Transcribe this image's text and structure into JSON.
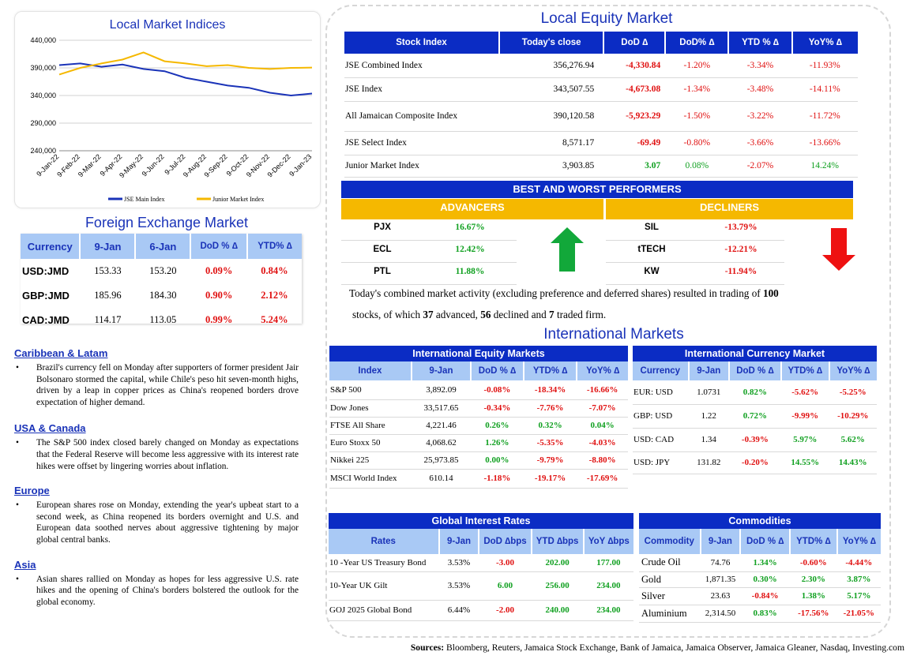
{
  "chart_data": {
    "type": "line",
    "title": "Local Market Indices",
    "x": [
      "9-Jan-22",
      "9-Feb-22",
      "9-Mar-22",
      "9-Apr-22",
      "9-May-22",
      "9-Jun-22",
      "9-Jul-22",
      "9-Aug-22",
      "9-Sep-22",
      "9-Oct-22",
      "9-Nov-22",
      "9-Dec-22",
      "9-Jan-23"
    ],
    "ytick_labels": [
      "440,000",
      "390,000",
      "340,000",
      "290,000",
      "240,000"
    ],
    "ylim": [
      240000,
      440000
    ],
    "series": [
      {
        "name": "JSE Main Index",
        "color": "#1a33b8",
        "values": [
          395000,
          398000,
          392000,
          396000,
          388000,
          384000,
          372000,
          365000,
          358000,
          354000,
          345000,
          340000,
          343500
        ]
      },
      {
        "name": "Junior Market Index",
        "color": "#f5b800",
        "values": [
          378000,
          390000,
          398000,
          405000,
          418000,
          402000,
          398000,
          393000,
          395000,
          390000,
          388000,
          390000,
          390500
        ]
      }
    ],
    "legend_position": "bottom"
  },
  "fx": {
    "title": "Foreign Exchange Market",
    "headers": [
      "Currency",
      "9-Jan",
      "6-Jan",
      "DoD % ∆",
      "YTD% ∆"
    ],
    "rows": [
      {
        "c": "USD:JMD",
        "a": "153.33",
        "b": "153.20",
        "d": "0.09%",
        "y": "0.84%"
      },
      {
        "c": "GBP:JMD",
        "a": "185.96",
        "b": "184.30",
        "d": "0.90%",
        "y": "2.12%"
      },
      {
        "c": "CAD:JMD",
        "a": "114.17",
        "b": "113.05",
        "d": "0.99%",
        "y": "5.24%"
      }
    ]
  },
  "news": [
    {
      "title": "Caribbean & Latam",
      "text": "Brazil's currency fell on Monday after supporters of former president Jair Bolsonaro stormed the capital, while Chile's peso hit seven-month highs, driven by a leap in copper prices as China's reopened borders drove expectation of higher demand."
    },
    {
      "title": "USA & Canada",
      "text": "The S&P 500 index closed barely changed on Monday as expectations that the Federal Reserve will become less aggressive with its interest rate hikes were offset by lingering worries about inflation."
    },
    {
      "title": "Europe",
      "text": "European shares rose on Monday, extending the year's upbeat start to a second week, as China reopened its borders overnight and U.S. and European data soothed nerves about aggressive tightening by major global central banks."
    },
    {
      "title": "Asia",
      "text": "Asian shares rallied on Monday as hopes for less aggressive U.S. rate hikes and the opening of China's borders bolstered the outlook for the global economy."
    }
  ],
  "equity": {
    "title": "Local Equity Market",
    "headers": [
      "Stock Index",
      "Today's close",
      "DoD  ∆",
      "DoD% ∆",
      "YTD % ∆",
      "YoY% ∆"
    ],
    "rows": [
      {
        "n": "JSE Combined Index",
        "c": "356,276.94",
        "d": "-4,330.84",
        "dp": "-1.20%",
        "y": "-3.34%",
        "yy": "-11.93%",
        "dc": "red",
        "yc": "red"
      },
      {
        "n": "JSE Index",
        "c": "343,507.55",
        "d": "-4,673.08",
        "dp": "-1.34%",
        "y": "-3.48%",
        "yy": "-14.11%",
        "dc": "red",
        "yc": "red"
      },
      {
        "n": "All Jamaican Composite Index",
        "c": "390,120.58",
        "d": "-5,923.29",
        "dp": "-1.50%",
        "y": "-3.22%",
        "yy": "-11.72%",
        "dc": "red",
        "yc": "red"
      },
      {
        "n": "JSE Select Index",
        "c": "8,571.17",
        "d": "-69.49",
        "dp": "-0.80%",
        "y": "-3.66%",
        "yy": "-13.66%",
        "dc": "red",
        "yc": "red"
      },
      {
        "n": "Junior Market Index",
        "c": "3,903.85",
        "d": "3.07",
        "dp": "0.08%",
        "y": "-2.07%",
        "yy": "14.24%",
        "dc": "green",
        "yc": "green"
      }
    ]
  },
  "performers": {
    "title": "BEST AND WORST PERFORMERS",
    "adv_label": "ADVANCERS",
    "dec_label": "DECLINERS",
    "advancers": [
      {
        "s": "PJX",
        "v": "16.67%"
      },
      {
        "s": "ECL",
        "v": "12.42%"
      },
      {
        "s": "PTL",
        "v": "11.88%"
      }
    ],
    "decliners": [
      {
        "s": "SIL",
        "v": "-13.79%"
      },
      {
        "s": "tTECH",
        "v": "-12.21%"
      },
      {
        "s": "KW",
        "v": "-11.94%"
      }
    ]
  },
  "summary": {
    "p1": "Today's combined market activity (excluding preference and deferred shares) resulted in trading of ",
    "n_total": "100",
    "p2": "stocks, of which ",
    "n_adv": "37",
    "p3": " advanced, ",
    "n_dec": "56",
    "p4": " declined and ",
    "n_firm": "7",
    "p5": " traded firm."
  },
  "intl": {
    "title": "International Markets",
    "equity": {
      "title": "International Equity Markets",
      "headers": [
        "Index",
        "9-Jan",
        "DoD % ∆",
        "YTD% ∆",
        "YoY% ∆"
      ],
      "rows": [
        {
          "n": "S&P 500",
          "v": "3,892.09",
          "d": "-0.08%",
          "y": "-18.34%",
          "yy": "-16.66%",
          "dc": "red",
          "yc": "red",
          "yyc": "red"
        },
        {
          "n": "Dow Jones",
          "v": "33,517.65",
          "d": "-0.34%",
          "y": "-7.76%",
          "yy": "-7.07%",
          "dc": "red",
          "yc": "red",
          "yyc": "red"
        },
        {
          "n": "FTSE All Share",
          "v": "4,221.46",
          "d": "0.26%",
          "y": "0.32%",
          "yy": "0.04%",
          "dc": "green",
          "yc": "green",
          "yyc": "green"
        },
        {
          "n": "Euro Stoxx 50",
          "v": "4,068.62",
          "d": "1.26%",
          "y": "-5.35%",
          "yy": "-4.03%",
          "dc": "green",
          "yc": "red",
          "yyc": "red"
        },
        {
          "n": "Nikkei 225",
          "v": "25,973.85",
          "d": "0.00%",
          "y": "-9.79%",
          "yy": "-8.80%",
          "dc": "green",
          "yc": "red",
          "yyc": "red"
        },
        {
          "n": "MSCI World Index",
          "v": "610.14",
          "d": "-1.18%",
          "y": "-19.17%",
          "yy": "-17.69%",
          "dc": "red",
          "yc": "red",
          "yyc": "red"
        }
      ]
    },
    "currency": {
      "title": "International Currency Market",
      "headers": [
        "Currency",
        "9-Jan",
        "DoD % ∆",
        "YTD% ∆",
        "YoY% ∆"
      ],
      "rows": [
        {
          "n": "EUR: USD",
          "v": "1.0731",
          "d": "0.82%",
          "y": "-5.62%",
          "yy": "-5.25%",
          "dc": "green",
          "yc": "red",
          "yyc": "red"
        },
        {
          "n": "GBP: USD",
          "v": "1.22",
          "d": "0.72%",
          "y": "-9.99%",
          "yy": "-10.29%",
          "dc": "green",
          "yc": "red",
          "yyc": "red"
        },
        {
          "n": "USD: CAD",
          "v": "1.34",
          "d": "-0.39%",
          "y": "5.97%",
          "yy": "5.62%",
          "dc": "red",
          "yc": "green",
          "yyc": "green"
        },
        {
          "n": "USD: JPY",
          "v": "131.82",
          "d": "-0.20%",
          "y": "14.55%",
          "yy": "14.43%",
          "dc": "red",
          "yc": "green",
          "yyc": "green"
        }
      ]
    },
    "rates": {
      "title": "Global Interest Rates",
      "headers": [
        "Rates",
        "9-Jan",
        "DoD ∆bps",
        "YTD ∆bps",
        "YoY ∆bps"
      ],
      "rows": [
        {
          "n": "10 -Year US Treasury Bond",
          "v": "3.53%",
          "d": "-3.00",
          "y": "202.00",
          "yy": "177.00",
          "dc": "red"
        },
        {
          "n": "10-Year UK Gilt",
          "v": "3.53%",
          "d": "6.00",
          "y": "256.00",
          "yy": "234.00",
          "dc": "green"
        },
        {
          "n": "GOJ 2025 Global Bond",
          "v": "6.44%",
          "d": "-2.00",
          "y": "240.00",
          "yy": "234.00",
          "dc": "red"
        }
      ]
    },
    "commodities": {
      "title": "Commodities",
      "headers": [
        "Commodity",
        "9-Jan",
        "DoD % ∆",
        "YTD% ∆",
        "YoY% ∆"
      ],
      "rows": [
        {
          "n": "Crude Oil",
          "v": "74.76",
          "d": "1.34%",
          "y": "-0.60%",
          "yy": "-4.44%",
          "dc": "green",
          "yc": "red",
          "yyc": "red"
        },
        {
          "n": "Gold",
          "v": "1,871.35",
          "d": "0.30%",
          "y": "2.30%",
          "yy": "3.87%",
          "dc": "green",
          "yc": "green",
          "yyc": "green"
        },
        {
          "n": "Silver",
          "v": "23.63",
          "d": "-0.84%",
          "y": "1.38%",
          "yy": "5.17%",
          "dc": "red",
          "yc": "green",
          "yyc": "green"
        },
        {
          "n": "Aluminium",
          "v": "2,314.50",
          "d": "0.83%",
          "y": "-17.56%",
          "yy": "-21.05%",
          "dc": "green",
          "yc": "red",
          "yyc": "red"
        }
      ]
    }
  },
  "sources": {
    "label": "Sources:",
    "text": " Bloomberg, Reuters, Jamaica Stock Exchange, Bank of Jamaica, Jamaica Observer, Jamaica Gleaner, Nasdaq, Investing.com"
  },
  "colors": {
    "accent": "#1a33b8",
    "header": "#0b2cc4",
    "gold": "#f5b800",
    "red": "#e01010",
    "green": "#10a020"
  }
}
